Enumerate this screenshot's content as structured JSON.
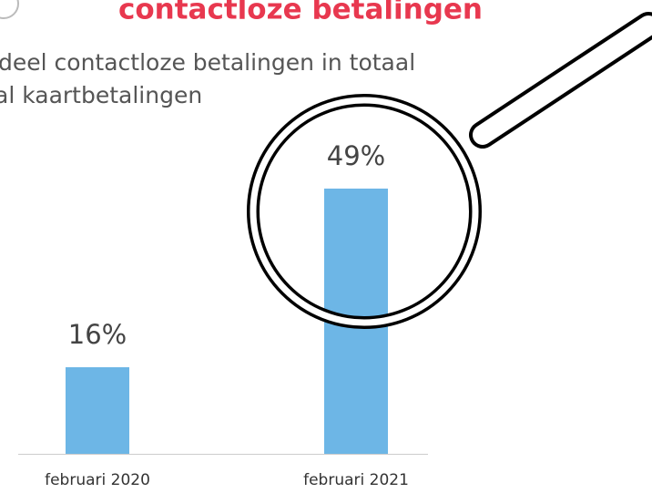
{
  "chart_data": {
    "type": "bar",
    "title": "contactloze betalingen",
    "subtitle": [
      "deel contactloze betalingen in totaal",
      "al kaartbetalingen"
    ],
    "categories": [
      "februari 2020",
      "februari 2021"
    ],
    "values": [
      16,
      49
    ],
    "value_labels": [
      "16%",
      "49%"
    ],
    "color": "#6db6e6"
  }
}
